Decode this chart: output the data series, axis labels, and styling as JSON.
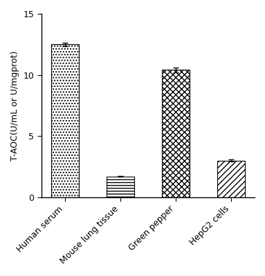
{
  "categories": [
    "Human serum",
    "Mouse lung tissue",
    "Green pepper",
    "HepG2 cells"
  ],
  "values": [
    12.5,
    1.7,
    10.4,
    3.0
  ],
  "errors": [
    0.15,
    0.05,
    0.2,
    0.1
  ],
  "hatch_styles": [
    "....",
    "----",
    "xxxx",
    "////"
  ],
  "ylabel": "T-AOC(U/mL or U/mgprot)",
  "ylim": [
    0,
    15
  ],
  "yticks": [
    0,
    5,
    10,
    15
  ],
  "bar_width": 0.5,
  "figsize": [
    3.83,
    4.0
  ],
  "dpi": 100
}
